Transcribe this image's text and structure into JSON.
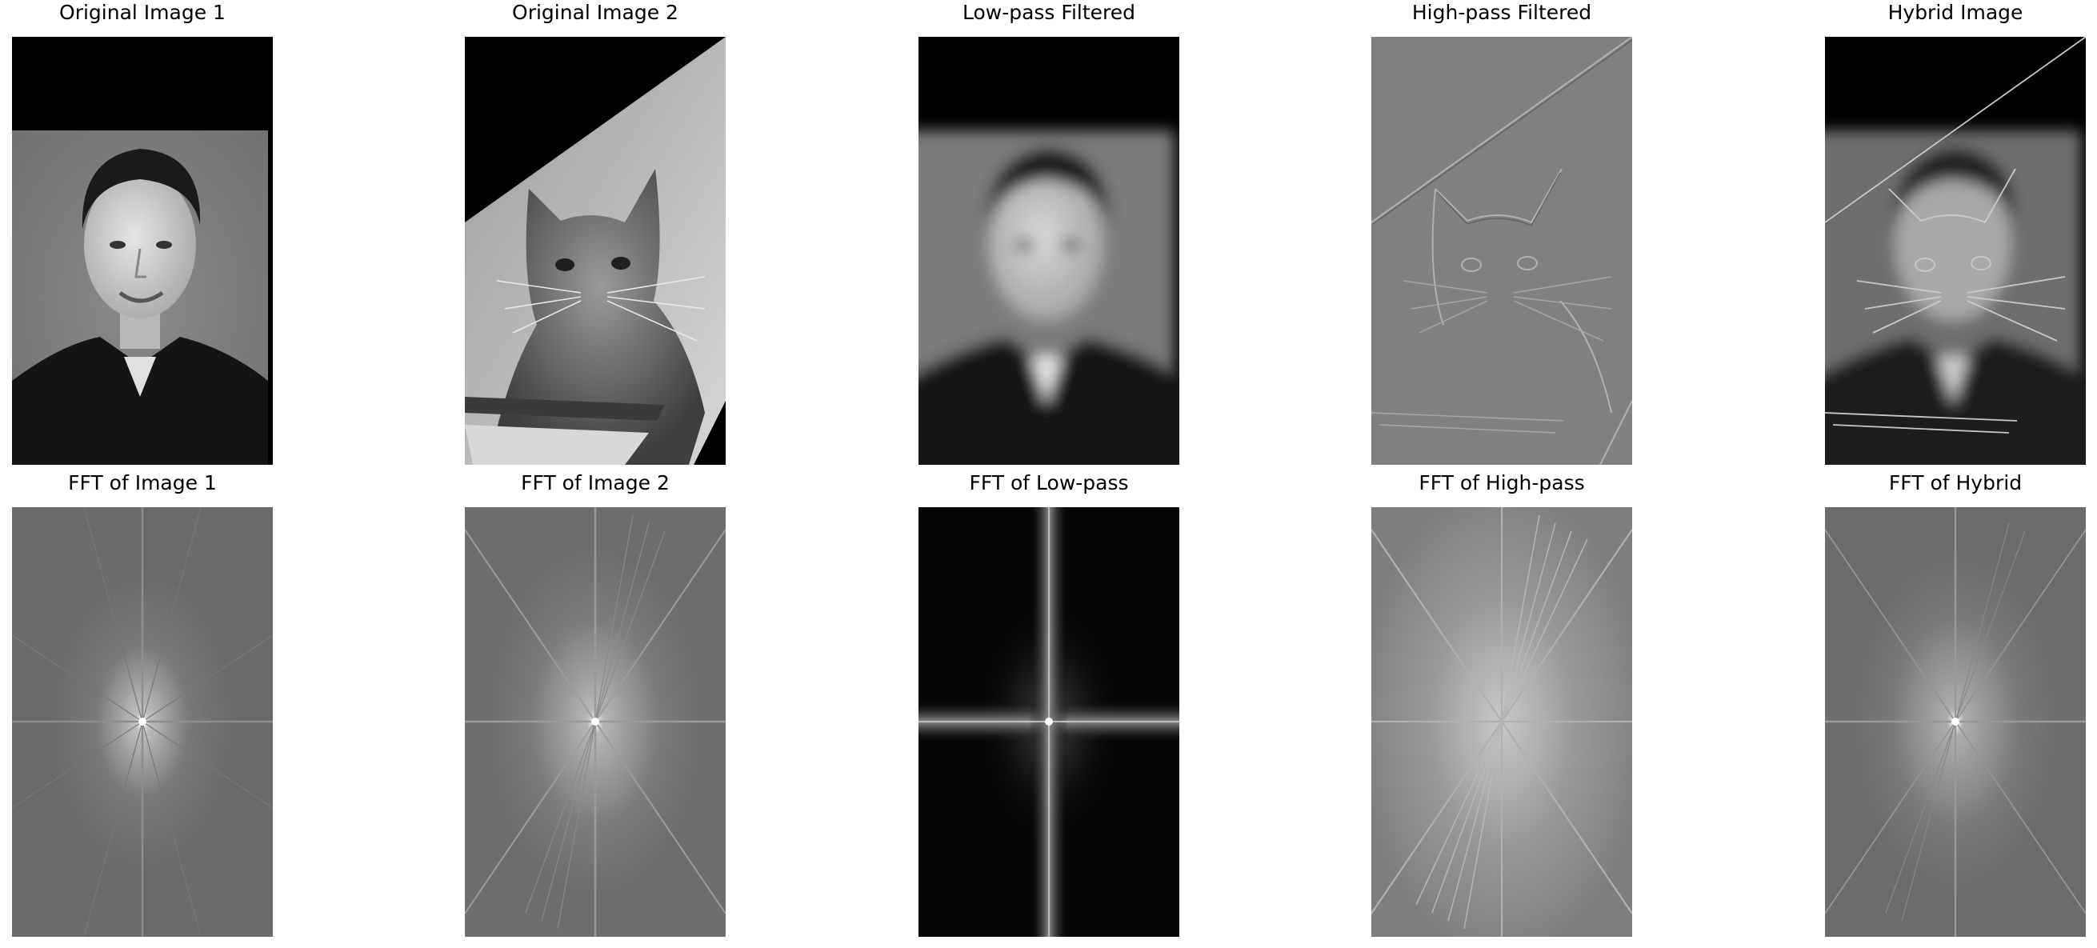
{
  "figure": {
    "panels_row1": [
      {
        "title": "Original Image 1",
        "content": "grayscale-portrait-man"
      },
      {
        "title": "Original Image 2",
        "content": "grayscale-rotated-cat"
      },
      {
        "title": "Low-pass Filtered",
        "content": "blurred-portrait"
      },
      {
        "title": "High-pass Filtered",
        "content": "cat-edge-detail"
      },
      {
        "title": "Hybrid Image",
        "content": "man-cat-hybrid"
      }
    ],
    "panels_row2": [
      {
        "title": "FFT of Image 1",
        "content": "spectrum-image-1"
      },
      {
        "title": "FFT of Image 2",
        "content": "spectrum-image-2"
      },
      {
        "title": "FFT of Low-pass",
        "content": "spectrum-low-pass"
      },
      {
        "title": "FFT of High-pass",
        "content": "spectrum-high-pass"
      },
      {
        "title": "FFT of Hybrid",
        "content": "spectrum-hybrid"
      }
    ]
  },
  "colors": {
    "background": "#ffffff",
    "black": "#000000",
    "gray_bg": "#7a7a7a",
    "fft_gray": "#6a6a6a"
  }
}
